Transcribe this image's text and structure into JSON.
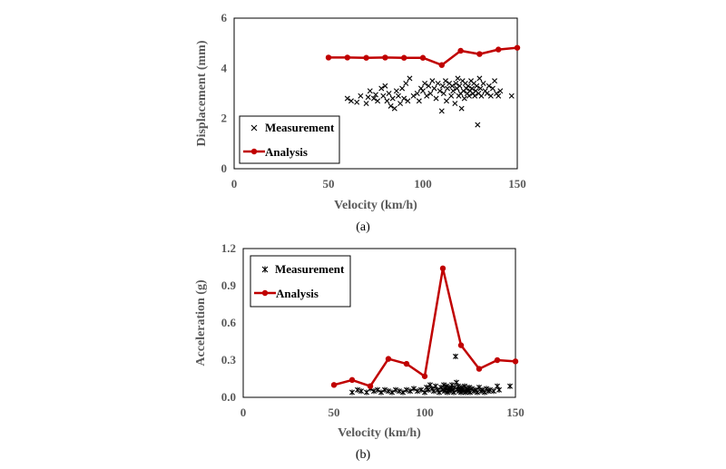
{
  "chart_data": [
    {
      "type": "scatter",
      "caption": "(a)",
      "xlabel": "Velocity (km/h)",
      "ylabel": "Displacement (mm)",
      "xlim": [
        0,
        150
      ],
      "ylim": [
        0,
        6
      ],
      "xticks": [
        "0",
        "50",
        "100",
        "150"
      ],
      "yticks": [
        "0",
        "2",
        "4",
        "6"
      ],
      "legend_position": "bottom-left",
      "series": [
        {
          "name": "Measurement",
          "marker": "x",
          "points": [
            [
              60,
              2.8
            ],
            [
              62,
              2.7
            ],
            [
              65,
              2.65
            ],
            [
              67,
              2.9
            ],
            [
              70,
              2.6
            ],
            [
              71,
              2.85
            ],
            [
              72,
              3.1
            ],
            [
              74,
              2.8
            ],
            [
              75,
              2.95
            ],
            [
              76,
              2.7
            ],
            [
              78,
              3.2
            ],
            [
              79,
              2.9
            ],
            [
              80,
              3.3
            ],
            [
              81,
              2.7
            ],
            [
              82,
              3.0
            ],
            [
              83,
              2.5
            ],
            [
              84,
              2.8
            ],
            [
              85,
              2.4
            ],
            [
              86,
              3.1
            ],
            [
              87,
              2.9
            ],
            [
              88,
              2.6
            ],
            [
              89,
              3.2
            ],
            [
              90,
              2.8
            ],
            [
              91,
              3.4
            ],
            [
              92,
              2.7
            ],
            [
              93,
              3.6
            ],
            [
              95,
              2.9
            ],
            [
              97,
              3.0
            ],
            [
              98,
              2.7
            ],
            [
              99,
              3.2
            ],
            [
              100,
              3.1
            ],
            [
              101,
              3.4
            ],
            [
              102,
              2.9
            ],
            [
              103,
              3.3
            ],
            [
              104,
              3.0
            ],
            [
              105,
              3.5
            ],
            [
              106,
              3.2
            ],
            [
              107,
              2.8
            ],
            [
              108,
              3.4
            ],
            [
              109,
              3.1
            ],
            [
              110,
              2.3
            ],
            [
              110.5,
              3.3
            ],
            [
              111,
              3.0
            ],
            [
              112,
              3.5
            ],
            [
              112.5,
              2.7
            ],
            [
              113,
              3.2
            ],
            [
              114,
              3.4
            ],
            [
              115,
              2.9
            ],
            [
              115.5,
              3.3
            ],
            [
              116,
              3.1
            ],
            [
              117,
              2.6
            ],
            [
              117.5,
              3.4
            ],
            [
              118,
              3.2
            ],
            [
              118.5,
              3.6
            ],
            [
              119,
              2.9
            ],
            [
              119.5,
              3.3
            ],
            [
              120,
              3.0
            ],
            [
              120.5,
              2.4
            ],
            [
              121,
              3.5
            ],
            [
              121.5,
              3.1
            ],
            [
              122,
              2.8
            ],
            [
              122.5,
              3.4
            ],
            [
              123,
              3.2
            ],
            [
              123.5,
              3.0
            ],
            [
              124,
              3.3
            ],
            [
              124.5,
              2.9
            ],
            [
              125,
              3.1
            ],
            [
              125.5,
              3.5
            ],
            [
              126,
              3.2
            ],
            [
              126.5,
              3.0
            ],
            [
              127,
              3.4
            ],
            [
              127.5,
              2.9
            ],
            [
              128,
              3.1
            ],
            [
              128.5,
              3.3
            ],
            [
              129,
              1.75
            ],
            [
              129.5,
              3.0
            ],
            [
              130,
              3.6
            ],
            [
              130.5,
              3.2
            ],
            [
              131,
              2.9
            ],
            [
              132,
              3.4
            ],
            [
              133,
              3.1
            ],
            [
              134,
              3.0
            ],
            [
              135,
              3.3
            ],
            [
              136,
              2.9
            ],
            [
              137,
              3.2
            ],
            [
              138,
              3.5
            ],
            [
              139,
              3.0
            ],
            [
              140,
              2.9
            ],
            [
              141,
              3.1
            ],
            [
              147,
              2.9
            ]
          ]
        },
        {
          "name": "Analysis",
          "marker": "dot-line",
          "color": "#c00000",
          "points": [
            [
              50,
              4.43
            ],
            [
              60,
              4.43
            ],
            [
              70,
              4.42
            ],
            [
              80,
              4.43
            ],
            [
              90,
              4.42
            ],
            [
              100,
              4.42
            ],
            [
              110,
              4.13
            ],
            [
              120,
              4.7
            ],
            [
              130,
              4.57
            ],
            [
              140,
              4.75
            ],
            [
              150,
              4.82
            ]
          ]
        }
      ]
    },
    {
      "type": "scatter",
      "caption": "(b)",
      "xlabel": "Velocity (km/h)",
      "ylabel": "Acceleration (g)",
      "xlim": [
        0,
        150
      ],
      "ylim": [
        0,
        1.2
      ],
      "xticks": [
        "0",
        "50",
        "100",
        "150"
      ],
      "yticks": [
        "0.0",
        "0.3",
        "0.6",
        "0.9",
        "1.2"
      ],
      "legend_position": "top-left",
      "series": [
        {
          "name": "Measurement",
          "marker": "asterisk",
          "points": [
            [
              60,
              0.04
            ],
            [
              63,
              0.06
            ],
            [
              65,
              0.05
            ],
            [
              68,
              0.04
            ],
            [
              70,
              0.07
            ],
            [
              72,
              0.05
            ],
            [
              74,
              0.06
            ],
            [
              76,
              0.04
            ],
            [
              78,
              0.06
            ],
            [
              80,
              0.05
            ],
            [
              82,
              0.04
            ],
            [
              84,
              0.06
            ],
            [
              86,
              0.05
            ],
            [
              88,
              0.04
            ],
            [
              90,
              0.06
            ],
            [
              92,
              0.05
            ],
            [
              94,
              0.07
            ],
            [
              96,
              0.05
            ],
            [
              98,
              0.06
            ],
            [
              100,
              0.04
            ],
            [
              101,
              0.08
            ],
            [
              102,
              0.06
            ],
            [
              103,
              0.1
            ],
            [
              104,
              0.07
            ],
            [
              105,
              0.05
            ],
            [
              106,
              0.09
            ],
            [
              107,
              0.06
            ],
            [
              108,
              0.04
            ],
            [
              109,
              0.08
            ],
            [
              110,
              0.06
            ],
            [
              110.5,
              0.1
            ],
            [
              111,
              0.05
            ],
            [
              111.5,
              0.07
            ],
            [
              112,
              0.09
            ],
            [
              112.5,
              0.04
            ],
            [
              113,
              0.06
            ],
            [
              113.5,
              0.08
            ],
            [
              114,
              0.05
            ],
            [
              114.5,
              0.07
            ],
            [
              115,
              0.1
            ],
            [
              115.5,
              0.06
            ],
            [
              116,
              0.04
            ],
            [
              116.5,
              0.08
            ],
            [
              117,
              0.33
            ],
            [
              117.5,
              0.12
            ],
            [
              118,
              0.06
            ],
            [
              118.5,
              0.09
            ],
            [
              119,
              0.05
            ],
            [
              119.5,
              0.07
            ],
            [
              120,
              0.04
            ],
            [
              120.5,
              0.08
            ],
            [
              121,
              0.06
            ],
            [
              121.5,
              0.05
            ],
            [
              122,
              0.09
            ],
            [
              122.5,
              0.04
            ],
            [
              123,
              0.07
            ],
            [
              123.5,
              0.06
            ],
            [
              124,
              0.05
            ],
            [
              124.5,
              0.08
            ],
            [
              125,
              0.04
            ],
            [
              126,
              0.07
            ],
            [
              127,
              0.05
            ],
            [
              128,
              0.06
            ],
            [
              129,
              0.04
            ],
            [
              130,
              0.08
            ],
            [
              131,
              0.05
            ],
            [
              132,
              0.06
            ],
            [
              133,
              0.04
            ],
            [
              134,
              0.07
            ],
            [
              135,
              0.05
            ],
            [
              136,
              0.06
            ],
            [
              138,
              0.05
            ],
            [
              140,
              0.09
            ],
            [
              141,
              0.06
            ],
            [
              147,
              0.09
            ]
          ]
        },
        {
          "name": "Analysis",
          "marker": "dot-line",
          "color": "#c00000",
          "points": [
            [
              50,
              0.1
            ],
            [
              60,
              0.14
            ],
            [
              70,
              0.09
            ],
            [
              80,
              0.31
            ],
            [
              90,
              0.27
            ],
            [
              100,
              0.17
            ],
            [
              110,
              1.04
            ],
            [
              120,
              0.42
            ],
            [
              130,
              0.23
            ],
            [
              140,
              0.3
            ],
            [
              150,
              0.29
            ]
          ]
        }
      ]
    }
  ]
}
